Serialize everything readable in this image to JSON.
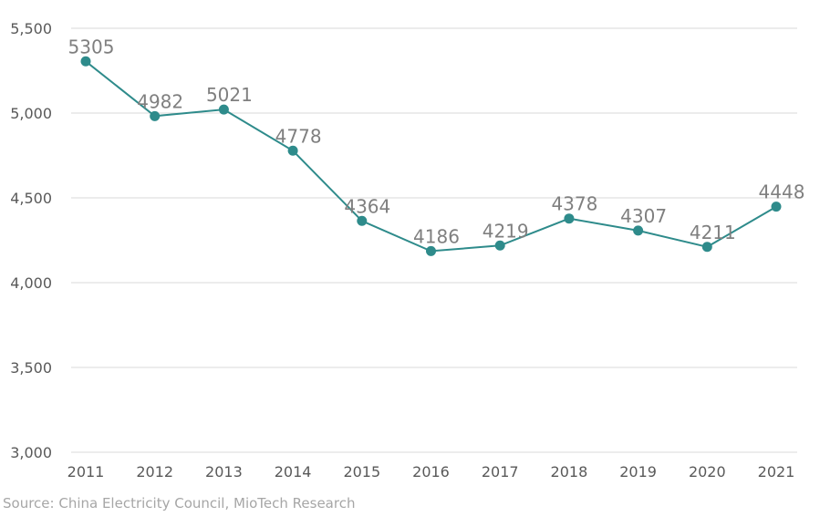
{
  "chart_data": {
    "type": "line",
    "categories": [
      "2011",
      "2012",
      "2013",
      "2014",
      "2015",
      "2016",
      "2017",
      "2018",
      "2019",
      "2020",
      "2021"
    ],
    "values": [
      5305,
      4982,
      5021,
      4778,
      4364,
      4186,
      4219,
      4378,
      4307,
      4211,
      4448
    ],
    "data_labels": [
      "5305",
      "4982",
      "5021",
      "4778",
      "4364",
      "4186",
      "4219",
      "4378",
      "4307",
      "4211",
      "4448"
    ],
    "y_ticks": [
      3000,
      3500,
      4000,
      4500,
      5000,
      5500
    ],
    "y_tick_labels": [
      "3,000",
      "3,500",
      "4,000",
      "4,500",
      "5,000",
      "5,500"
    ],
    "ylim": [
      3000,
      5500
    ],
    "title": "",
    "xlabel": "",
    "ylabel": "",
    "grid": true,
    "legend": "none",
    "colors": {
      "line": "#2e8b8b",
      "grid": "#d9d9d9",
      "label": "#7f7f7f",
      "tick": "#595959",
      "source": "#a6a6a6"
    }
  },
  "footer": {
    "source": "Source: China Electricity Council, MioTech Research"
  }
}
